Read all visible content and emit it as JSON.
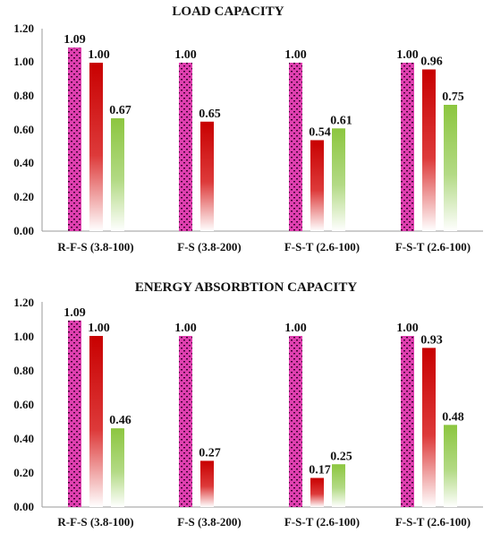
{
  "chart_data": [
    {
      "type": "bar",
      "title": "LOAD CAPACITY",
      "xlabel": "",
      "ylabel": "",
      "ylim": [
        0,
        1.2
      ],
      "yticks": [
        "0.00",
        "0.20",
        "0.40",
        "0.60",
        "0.80",
        "1.00",
        "1.20"
      ],
      "grid": false,
      "legend": "none",
      "categories": [
        "R-F-S (3.8-100)",
        "F-S (3.8-200)",
        "F-S-T (2.6-100)",
        "F-S-T (2.6-100)"
      ],
      "series": [
        {
          "color": "#e040b0",
          "pattern": "dotted",
          "values": [
            1.09,
            1.0,
            1.0,
            1.0
          ],
          "labels": [
            "1.09",
            "1.00",
            "1.00",
            "1.00"
          ]
        },
        {
          "color": "#cc0000",
          "pattern": "gradient",
          "values": [
            1.0,
            0.65,
            0.54,
            0.96
          ],
          "labels": [
            "1.00",
            "0.65",
            "0.54",
            "0.96"
          ]
        },
        {
          "color": "#8cc63f",
          "pattern": "gradient",
          "values": [
            0.67,
            null,
            0.61,
            0.75
          ],
          "labels": [
            "0.67",
            "",
            "0.61",
            "0.75"
          ]
        }
      ]
    },
    {
      "type": "bar",
      "title": "ENERGY ABSORBTION CAPACITY",
      "xlabel": "",
      "ylabel": "",
      "ylim": [
        0,
        1.2
      ],
      "yticks": [
        "0.00",
        "0.20",
        "0.40",
        "0.60",
        "0.80",
        "1.00",
        "1.20"
      ],
      "grid": false,
      "legend": "none",
      "categories": [
        "R-F-S (3.8-100)",
        "F-S (3.8-200)",
        "F-S-T (2.6-100)",
        "F-S-T (2.6-100)"
      ],
      "series": [
        {
          "color": "#e040b0",
          "pattern": "dotted",
          "values": [
            1.09,
            1.0,
            1.0,
            1.0
          ],
          "labels": [
            "1.09",
            "1.00",
            "1.00",
            "1.00"
          ]
        },
        {
          "color": "#cc0000",
          "pattern": "gradient",
          "values": [
            1.0,
            0.27,
            0.17,
            0.93
          ],
          "labels": [
            "1.00",
            "0.27",
            "0.17",
            "0.93"
          ]
        },
        {
          "color": "#8cc63f",
          "pattern": "gradient",
          "values": [
            0.46,
            null,
            0.25,
            0.48
          ],
          "labels": [
            "0.46",
            "",
            "0.25",
            "0.48"
          ]
        }
      ]
    }
  ]
}
